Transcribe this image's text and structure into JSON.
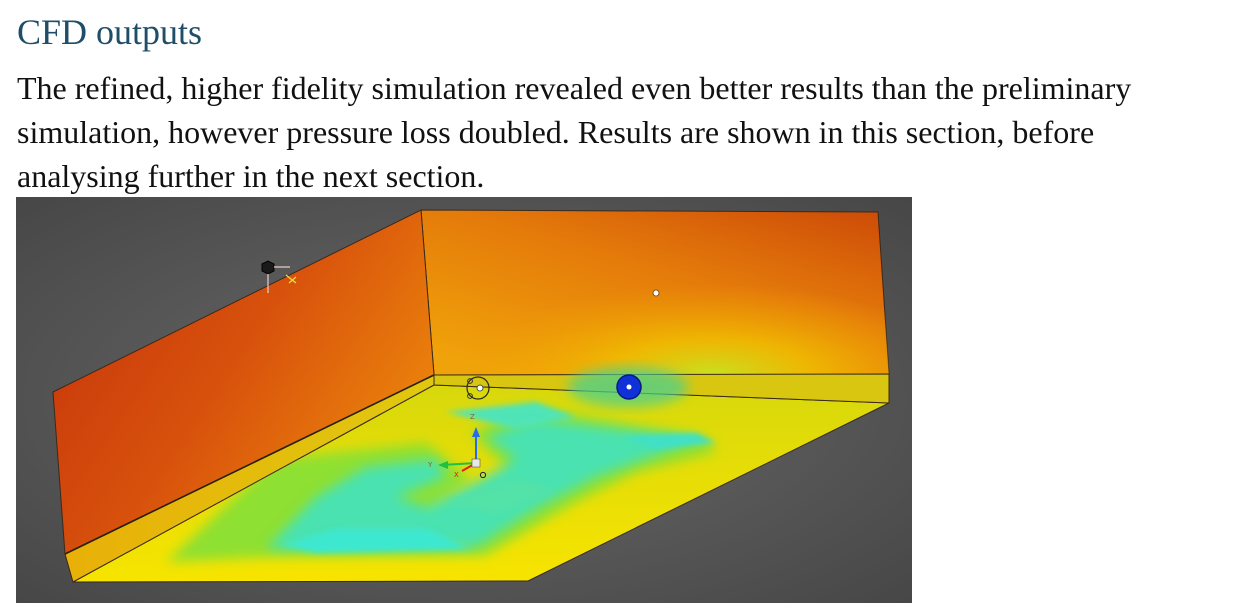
{
  "section": {
    "title": "CFD outputs",
    "paragraph": "The refined, higher fidelity simulation revealed even better results than the preliminary simulation, however pressure loss doubled. Results are shown in this section, before analysing further in the next section."
  },
  "figure": {
    "axis_labels": {
      "z": "Z",
      "y": "Y",
      "x": "X"
    },
    "colors": {
      "viewport_bg": "#555555",
      "hot": "#c8320a",
      "warm": "#e8780a",
      "mid": "#f2c800",
      "cool": "#44e0c0",
      "marker_blue": "#1030d8"
    }
  }
}
